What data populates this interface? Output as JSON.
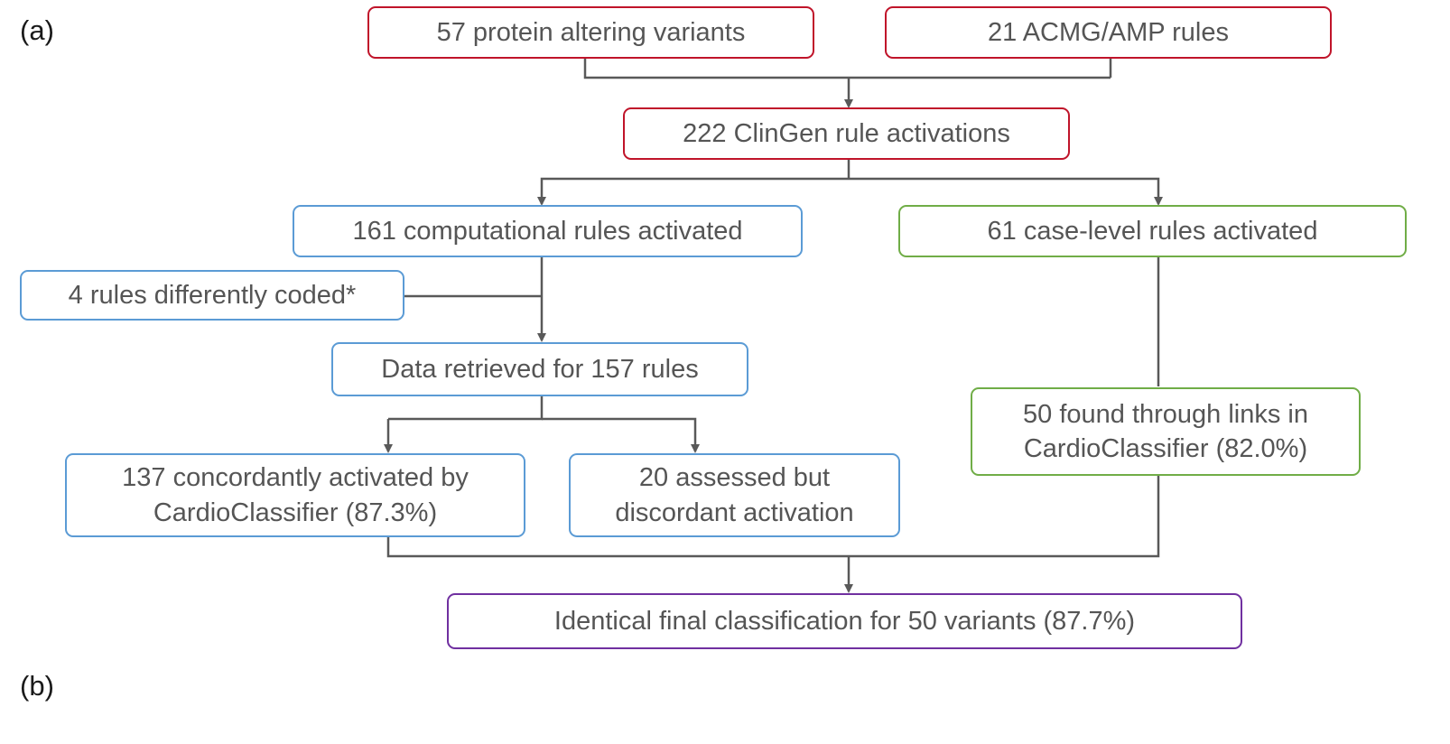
{
  "panel_labels": {
    "a": "(a)",
    "b": "(b)"
  },
  "colors": {
    "red": "#c0142a",
    "blue": "#5b9bd5",
    "green": "#70ad47",
    "purple": "#7030a0",
    "connector": "#595959"
  },
  "nodes": {
    "variants": "57 protein altering variants",
    "rules": "21 ACMG/AMP rules",
    "clingen": "222 ClinGen rule activations",
    "computational": "161 computational rules activated",
    "case_level": "61 case-level rules activated",
    "differently_coded": "4 rules differently coded*",
    "retrieved": "Data retrieved for 157 rules",
    "concordant_line1": "137 concordantly activated by",
    "concordant_line2": "CardioClassifier (87.3%)",
    "discordant_line1": "20 assessed but",
    "discordant_line2": "discordant activation",
    "links_line1": "50 found through links in",
    "links_line2": "CardioClassifier (82.0%)",
    "final": "Identical final classification for 50 variants (87.7%)"
  }
}
